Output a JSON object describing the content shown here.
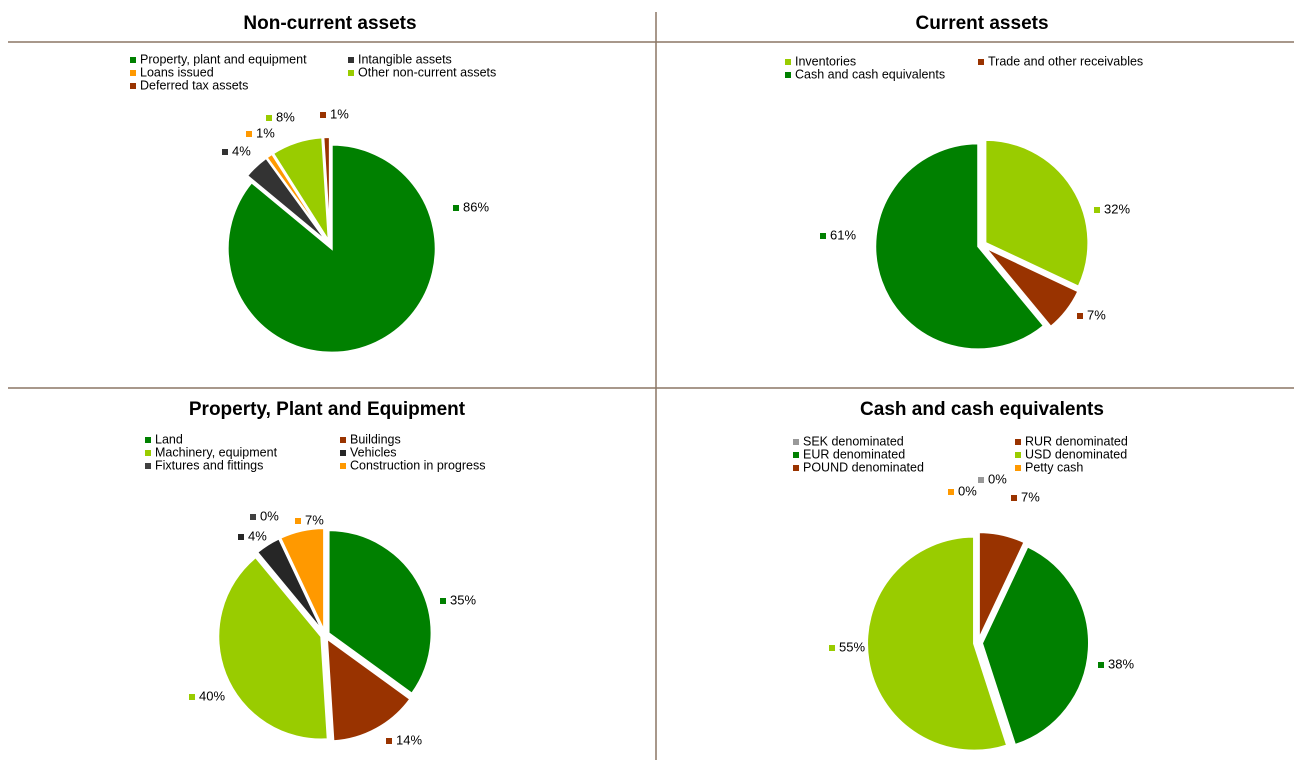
{
  "chart_data": [
    {
      "type": "pie",
      "title": "Non-current assets",
      "categories": [
        "Property, plant and equipment",
        "Intangible assets",
        "Loans issued",
        "Other non-current assets",
        "Deferred tax assets"
      ],
      "values": [
        86,
        4,
        1,
        8,
        1
      ],
      "value_labels": [
        "86%",
        "4%",
        "1%",
        "8%",
        "1%"
      ],
      "colors": [
        "#008000",
        "#333333",
        "#ff9900",
        "#99cc00",
        "#993300"
      ]
    },
    {
      "type": "pie",
      "title": "Current assets",
      "categories": [
        "Inventories",
        "Trade and other receivables",
        "Cash and cash equivalents"
      ],
      "values": [
        32,
        7,
        61
      ],
      "value_labels": [
        "32%",
        "7%",
        "61%"
      ],
      "colors": [
        "#99cc00",
        "#993300",
        "#008000"
      ]
    },
    {
      "type": "pie",
      "title": "Property, Plant and Equipment",
      "categories": [
        "Land",
        "Buildings",
        "Machinery, equipment",
        "Vehicles",
        "Fixtures and fittings",
        "Construction in progress"
      ],
      "values": [
        35,
        14,
        40,
        4,
        0,
        7
      ],
      "value_labels": [
        "35%",
        "14%",
        "40%",
        "4%",
        "0%",
        "7%"
      ],
      "colors": [
        "#008000",
        "#993300",
        "#99cc00",
        "#262626",
        "#404040",
        "#ff9900"
      ]
    },
    {
      "type": "pie",
      "title": "Cash and cash equivalents",
      "categories": [
        "SEK denominated",
        "RUR denominated",
        "EUR denominated",
        "USD denominated",
        "POUND denominated",
        "Petty cash"
      ],
      "values": [
        0,
        7,
        38,
        55,
        0,
        0
      ],
      "value_labels": [
        "0%",
        "7%",
        "38%",
        "55%",
        null,
        "0%"
      ],
      "colors": [
        "#999999",
        "#993300",
        "#008000",
        "#99cc00",
        "#993300",
        "#ff9900"
      ]
    }
  ]
}
